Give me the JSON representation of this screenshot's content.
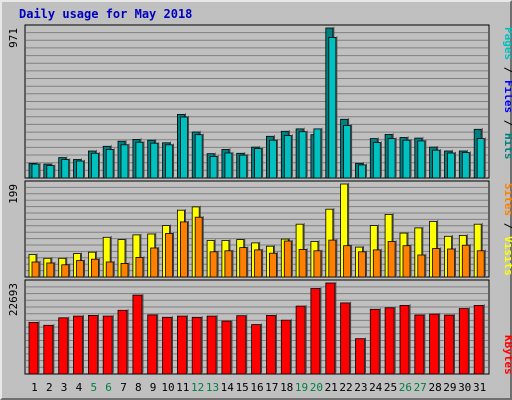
{
  "title": "Daily usage for May 2018",
  "colors": {
    "pages": "#00c0c0",
    "files": "#0000ff",
    "hits": "#008080",
    "sites": "#ff8000",
    "visits": "#ffff00",
    "kbytes": "#ff0000",
    "slash": "#000000",
    "weekend_label": "#008040",
    "weekday_label": "#000000",
    "panel_bg": "#c0c0c0",
    "grid": "#808080"
  },
  "legend": {
    "top": [
      {
        "text": "Pages",
        "color": "#00c0c0"
      },
      {
        "text": " / ",
        "color": "#000000"
      },
      {
        "text": "Files",
        "color": "#0000ff"
      },
      {
        "text": " / ",
        "color": "#000000"
      },
      {
        "text": "Hits",
        "color": "#008080"
      }
    ],
    "mid": [
      {
        "text": "Sites",
        "color": "#ff8000"
      },
      {
        "text": " / ",
        "color": "#000000"
      },
      {
        "text": "Visits",
        "color": "#ffff00"
      }
    ],
    "bot": [
      {
        "text": "KBytes",
        "color": "#ff0000"
      }
    ]
  },
  "chart_data": [
    {
      "type": "bar",
      "panel": "hits",
      "ymax_label": "971",
      "ylim": [
        0,
        971
      ],
      "categories": [
        "1",
        "2",
        "3",
        "4",
        "5",
        "6",
        "7",
        "8",
        "9",
        "10",
        "11",
        "12",
        "13",
        "14",
        "15",
        "16",
        "17",
        "18",
        "19",
        "20",
        "21",
        "22",
        "23",
        "24",
        "25",
        "26",
        "27",
        "28",
        "29",
        "30",
        "31"
      ],
      "weekend": [
        "5",
        "6",
        "12",
        "13",
        "19",
        "20",
        "26",
        "27"
      ],
      "series": [
        {
          "name": "Hits",
          "color": "#008080",
          "values": [
            95,
            90,
            132,
            120,
            175,
            205,
            238,
            250,
            245,
            228,
            412,
            298,
            157,
            185,
            160,
            200,
            270,
            302,
            318,
            280,
            971,
            380,
            95,
            255,
            282,
            262,
            258,
            200,
            175,
            175,
            315
          ]
        },
        {
          "name": "Pages",
          "color": "#00c0c0",
          "values": [
            90,
            80,
            120,
            110,
            160,
            185,
            215,
            232,
            225,
            215,
            395,
            280,
            140,
            162,
            148,
            190,
            245,
            275,
            300,
            318,
            910,
            340,
            85,
            230,
            255,
            245,
            240,
            180,
            162,
            165,
            255
          ]
        }
      ]
    },
    {
      "type": "bar",
      "panel": "sites",
      "ymax_label": "199",
      "ylim": [
        0,
        199
      ],
      "categories": [
        "1",
        "2",
        "3",
        "4",
        "5",
        "6",
        "7",
        "8",
        "9",
        "10",
        "11",
        "12",
        "13",
        "14",
        "15",
        "16",
        "17",
        "18",
        "19",
        "20",
        "21",
        "22",
        "23",
        "24",
        "25",
        "26",
        "27",
        "28",
        "29",
        "30",
        "31"
      ],
      "weekend": [
        "5",
        "6",
        "12",
        "13",
        "19",
        "20",
        "26",
        "27"
      ],
      "series": [
        {
          "name": "Visits",
          "color": "#ffff00",
          "values": [
            48,
            40,
            40,
            50,
            53,
            85,
            80,
            90,
            92,
            110,
            143,
            150,
            78,
            78,
            80,
            73,
            66,
            81,
            113,
            76,
            145,
            199,
            64,
            110,
            134,
            94,
            105,
            119,
            87,
            89,
            113
          ]
        },
        {
          "name": "Sites",
          "color": "#ff8000",
          "values": [
            32,
            30,
            26,
            35,
            38,
            32,
            29,
            42,
            62,
            93,
            118,
            128,
            54,
            56,
            63,
            58,
            51,
            77,
            59,
            56,
            79,
            67,
            54,
            58,
            76,
            67,
            47,
            61,
            60,
            68,
            56
          ]
        }
      ]
    },
    {
      "type": "bar",
      "panel": "kbytes",
      "ymax_label": "22693",
      "ylim": [
        0,
        22693
      ],
      "categories": [
        "1",
        "2",
        "3",
        "4",
        "5",
        "6",
        "7",
        "8",
        "9",
        "10",
        "11",
        "12",
        "13",
        "14",
        "15",
        "16",
        "17",
        "18",
        "19",
        "20",
        "21",
        "22",
        "23",
        "24",
        "25",
        "26",
        "27",
        "28",
        "29",
        "30",
        "31"
      ],
      "weekend": [
        "5",
        "6",
        "12",
        "13",
        "19",
        "20",
        "26",
        "27"
      ],
      "series": [
        {
          "name": "KBytes",
          "color": "#ff0000",
          "values": [
            12870,
            12150,
            14010,
            14450,
            14610,
            14450,
            15880,
            19680,
            14730,
            14130,
            14450,
            14140,
            14450,
            13180,
            14530,
            12320,
            14610,
            13420,
            16940,
            21320,
            22693,
            17730,
            8800,
            16130,
            16500,
            17100,
            14710,
            14930,
            14690,
            16300,
            17100
          ]
        }
      ]
    }
  ]
}
